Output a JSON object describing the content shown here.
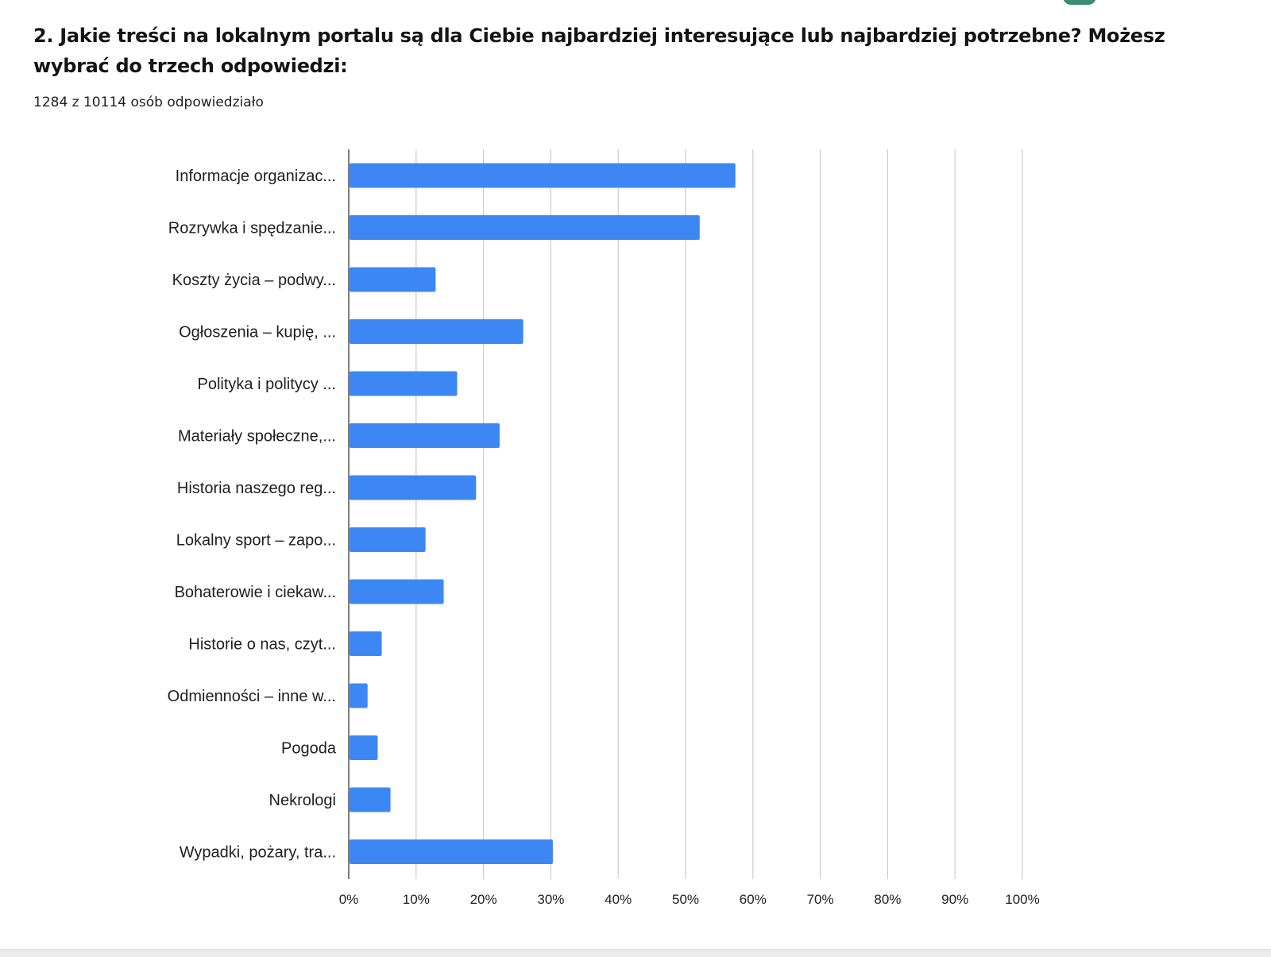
{
  "question": {
    "title": "2. Jakie treści na lokalnym portalu są dla Ciebie najbardziej interesujące lub najbardziej potrzebne? Możesz wybrać do trzech odpowiedzi:",
    "response_count": "1284 z 10114 osób odpowiedziało"
  },
  "colors": {
    "bar": "#3d87f5",
    "grid": "#cccccc",
    "axis": "#555555",
    "text": "#1f1f1f"
  },
  "chart_data": {
    "type": "bar",
    "orientation": "horizontal",
    "categories": [
      "Informacje organizac...",
      "Rozrywka i spędzanie...",
      "Koszty życia – podwy...",
      "Ogłoszenia – kupię, ...",
      "Polityka i politycy ...",
      "Materiały społeczne,...",
      "Historia naszego reg...",
      "Lokalny sport – zapo...",
      "Bohaterowie i ciekaw...",
      "Historie o nas, czyt...",
      "Odmienności – inne w...",
      "Pogoda",
      "Nekrologi",
      "Wypadki, pożary, tra..."
    ],
    "values": [
      57.4,
      52.1,
      12.9,
      25.9,
      16.1,
      22.4,
      18.9,
      11.4,
      14.1,
      4.9,
      2.8,
      4.3,
      6.2,
      30.3
    ],
    "unit": "%",
    "xlim": [
      0,
      100
    ],
    "xticks": [
      "0%",
      "10%",
      "20%",
      "30%",
      "40%",
      "50%",
      "60%",
      "70%",
      "80%",
      "90%",
      "100%"
    ],
    "grid": true,
    "legend": "none"
  }
}
